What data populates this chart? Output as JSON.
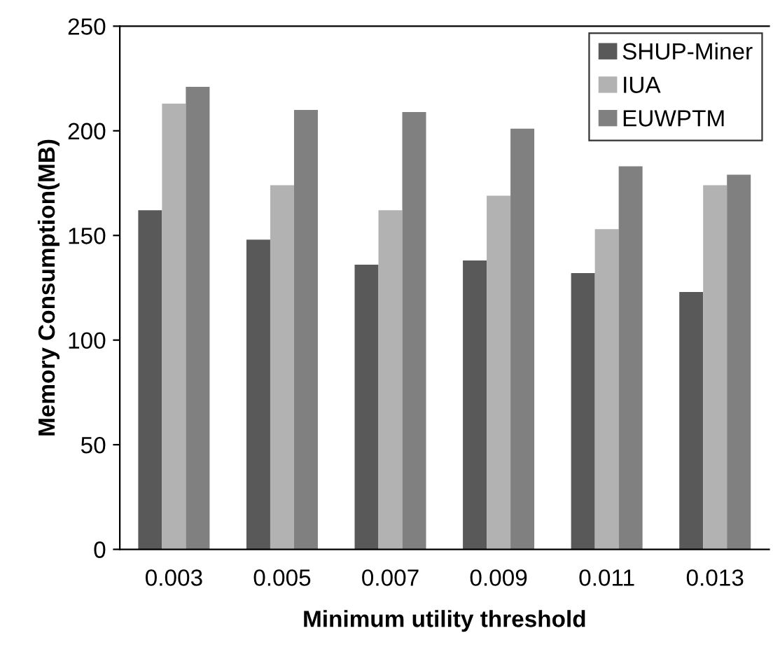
{
  "chart_data": {
    "type": "bar",
    "xlabel": "Minimum utility threshold",
    "ylabel": "Memory Consumption(MB)",
    "categories": [
      "0.003",
      "0.005",
      "0.007",
      "0.009",
      "0.011",
      "0.013"
    ],
    "series": [
      {
        "name": "SHUP-Miner",
        "color": "#595959",
        "values": [
          162,
          148,
          136,
          138,
          132,
          123
        ]
      },
      {
        "name": "IUA",
        "color": "#b2b2b2",
        "values": [
          213,
          174,
          162,
          169,
          153,
          174
        ]
      },
      {
        "name": "EUWPTM",
        "color": "#808080",
        "values": [
          221,
          210,
          209,
          201,
          183,
          179
        ]
      }
    ],
    "ylim": [
      0,
      250
    ],
    "yticks": [
      0,
      50,
      100,
      150,
      200,
      250
    ],
    "grid": false,
    "legend": "top right"
  }
}
